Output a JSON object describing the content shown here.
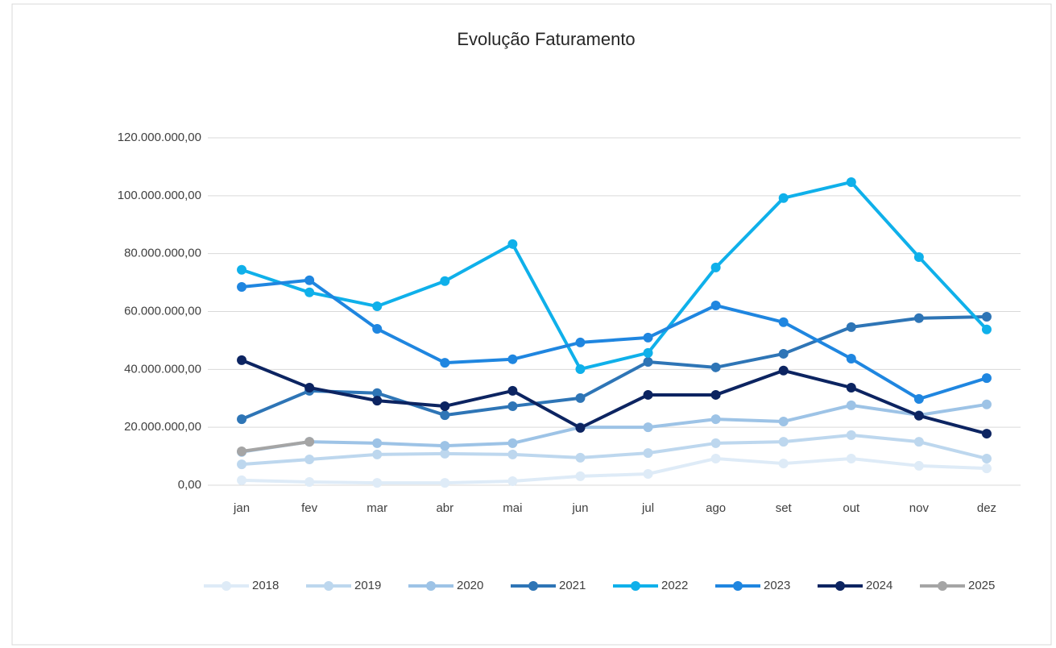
{
  "chart_data": {
    "type": "line",
    "title": "Evolução Faturamento",
    "categories": [
      "jan",
      "fev",
      "mar",
      "abr",
      "mai",
      "jun",
      "jul",
      "ago",
      "set",
      "out",
      "nov",
      "dez"
    ],
    "series": [
      {
        "name": "2018",
        "color": "#deebf7",
        "values": [
          1700000,
          1100000,
          800000,
          800000,
          1400000,
          3100000,
          3900000,
          9200000,
          7500000,
          9200000,
          6700000,
          5800000
        ]
      },
      {
        "name": "2019",
        "color": "#bdd7ee",
        "values": [
          7200000,
          8900000,
          10600000,
          10900000,
          10600000,
          9500000,
          11100000,
          14500000,
          15000000,
          17300000,
          15000000,
          9200000
        ]
      },
      {
        "name": "2020",
        "color": "#9dc3e6",
        "values": [
          11500000,
          15000000,
          14500000,
          13600000,
          14500000,
          20000000,
          20000000,
          22800000,
          22000000,
          27600000,
          24200000,
          27900000
        ]
      },
      {
        "name": "2021",
        "color": "#2e75b6",
        "values": [
          22800000,
          32600000,
          31800000,
          24200000,
          27300000,
          30100000,
          42600000,
          40700000,
          45400000,
          54600000,
          57700000,
          58200000
        ]
      },
      {
        "name": "2022",
        "color": "#0fb0ea",
        "values": [
          74400000,
          66600000,
          61800000,
          70500000,
          83300000,
          40100000,
          45700000,
          75200000,
          99200000,
          104700000,
          78800000,
          53800000
        ]
      },
      {
        "name": "2023",
        "color": "#1f86e0",
        "values": [
          68500000,
          70800000,
          54000000,
          42300000,
          43500000,
          49300000,
          51000000,
          62100000,
          56300000,
          43700000,
          29800000,
          37000000
        ]
      },
      {
        "name": "2024",
        "color": "#0c2461",
        "values": [
          43200000,
          33700000,
          29200000,
          27300000,
          32600000,
          19800000,
          31200000,
          31200000,
          39600000,
          33700000,
          24000000,
          17800000
        ]
      },
      {
        "name": "2025",
        "color": "#a5a5a5",
        "values": [
          11700000,
          15000000,
          null,
          null,
          null,
          null,
          null,
          null,
          null,
          null,
          null,
          null
        ]
      }
    ],
    "ylim": [
      0,
      120000000
    ],
    "yticks": [
      {
        "value": 0,
        "label": "0,00"
      },
      {
        "value": 20000000,
        "label": "20.000.000,00"
      },
      {
        "value": 40000000,
        "label": "40.000.000,00"
      },
      {
        "value": 60000000,
        "label": "60.000.000,00"
      },
      {
        "value": 80000000,
        "label": "80.000.000,00"
      },
      {
        "value": 100000000,
        "label": "100.000.000,00"
      },
      {
        "value": 120000000,
        "label": "120.000.000,00"
      }
    ],
    "grid": true,
    "legend": "bottom"
  }
}
